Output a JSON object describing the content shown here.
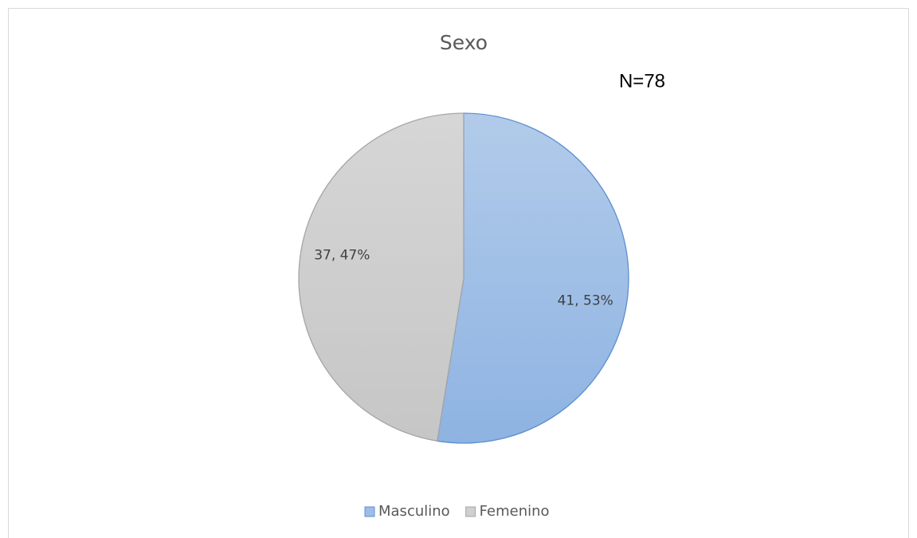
{
  "chart_data": {
    "type": "pie",
    "title": "Sexo",
    "annotation": "N=78",
    "categories": [
      "Masculino",
      "Femenino"
    ],
    "values": [
      41,
      37
    ],
    "value_labels": [
      "41, 53%",
      "37, 47%"
    ],
    "colors": [
      "#9dbde6",
      "#cfcfcf"
    ],
    "legend": "bottom"
  }
}
